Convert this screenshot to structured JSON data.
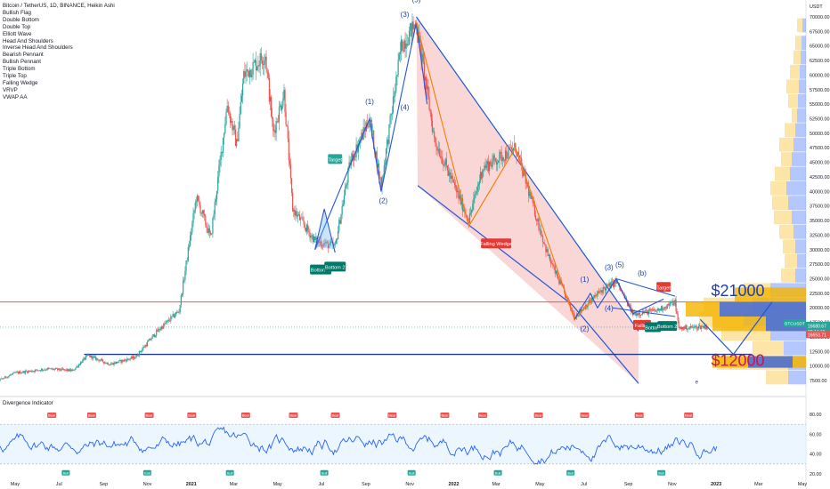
{
  "chart_data": [
    {
      "type": "candlestick",
      "title": "Bitcoin / TetherUS, 1D, BINANCE, Heikin Ashi",
      "currency": "USDT",
      "ylim": [
        5000,
        71500
      ],
      "y_ticks": [
        "70000.00",
        "67500.00",
        "65000.00",
        "62500.00",
        "60000.00",
        "57500.00",
        "55000.00",
        "52500.00",
        "50000.00",
        "47500.00",
        "45000.00",
        "42500.00",
        "40000.00",
        "37500.00",
        "35000.00",
        "32500.00",
        "30000.00",
        "27500.00",
        "25000.00",
        "22500.00",
        "20000.00",
        "17500.00",
        "15000.00",
        "12500.00",
        "10000.00",
        "7500.00"
      ],
      "x_ticks": [
        "May",
        "Jul",
        "Sep",
        "Nov",
        "2021",
        "Mar",
        "May",
        "Jul",
        "Sep",
        "Nov",
        "2022",
        "Mar",
        "May",
        "Jul",
        "Sep",
        "Nov",
        "2023",
        "Mar",
        "May"
      ],
      "price_path": [
        {
          "date": "2020-03-20",
          "close": 6500
        },
        {
          "date": "2020-05-01",
          "close": 8800
        },
        {
          "date": "2020-06-15",
          "close": 9500
        },
        {
          "date": "2020-07-20",
          "close": 9200
        },
        {
          "date": "2020-08-10",
          "close": 11800
        },
        {
          "date": "2020-09-10",
          "close": 10300
        },
        {
          "date": "2020-10-15",
          "close": 11500
        },
        {
          "date": "2020-11-15",
          "close": 16000
        },
        {
          "date": "2020-12-15",
          "close": 19500
        },
        {
          "date": "2021-01-08",
          "close": 39000
        },
        {
          "date": "2021-01-28",
          "close": 32000
        },
        {
          "date": "2021-02-20",
          "close": 55000
        },
        {
          "date": "2021-03-05",
          "close": 48000
        },
        {
          "date": "2021-03-15",
          "close": 60000
        },
        {
          "date": "2021-04-14",
          "close": 63500
        },
        {
          "date": "2021-04-25",
          "close": 50000
        },
        {
          "date": "2021-05-10",
          "close": 57000
        },
        {
          "date": "2021-05-22",
          "close": 37000
        },
        {
          "date": "2021-06-22",
          "close": 31500
        },
        {
          "date": "2021-07-20",
          "close": 30500
        },
        {
          "date": "2021-08-10",
          "close": 45000
        },
        {
          "date": "2021-09-06",
          "close": 52500
        },
        {
          "date": "2021-09-22",
          "close": 41000
        },
        {
          "date": "2021-10-20",
          "close": 65000
        },
        {
          "date": "2021-11-10",
          "close": 69000
        },
        {
          "date": "2021-12-05",
          "close": 49000
        },
        {
          "date": "2022-01-22",
          "close": 35000
        },
        {
          "date": "2022-02-10",
          "close": 44000
        },
        {
          "date": "2022-03-28",
          "close": 47500
        },
        {
          "date": "2022-05-12",
          "close": 29000
        },
        {
          "date": "2022-06-18",
          "close": 18500
        },
        {
          "date": "2022-07-25",
          "close": 23000
        },
        {
          "date": "2022-08-15",
          "close": 24500
        },
        {
          "date": "2022-09-07",
          "close": 19000
        },
        {
          "date": "2022-10-10",
          "close": 19500
        },
        {
          "date": "2022-11-05",
          "close": 21000
        },
        {
          "date": "2022-11-10",
          "close": 16500
        },
        {
          "date": "2022-12-20",
          "close": 16800
        }
      ],
      "legend": [
        "Bullish Flag",
        "Double Bottom",
        "Double Top",
        "Elliott Wave",
        "Head And Shoulders",
        "Inverse Head And Shoulders",
        "Bearish Pennant",
        "Bullish Pennant",
        "Triple Bottom",
        "Triple Top",
        "Falling Wedge",
        "VRVP",
        "VWAP AA"
      ],
      "labels": {
        "bottom1": "Bottom 1",
        "bottom2": "Bottom 2",
        "target1": "Target",
        "falling_wedge": "Falling Wedge",
        "target2": "Target",
        "falling2": "Falling",
        "bottom3": "Bottom",
        "bottom4": "Bottom 2",
        "wave1": "(1)",
        "wave2": "(2)",
        "wave3": "(3)",
        "wave4": "(4)",
        "wave5": "(5)",
        "wave1b": "(1)",
        "wave2b": "(2)",
        "wave3b": "(3)",
        "wave4b": "(4)",
        "wave5b": "(5)",
        "waveb": "(b)",
        "wavee": "e",
        "target21000": "$21000",
        "target12000": "$12000"
      },
      "price_tags": {
        "symbol": "BTCUSDT",
        "price": "16680.67",
        "countdown": "08:14:10",
        "vwap": "16653.71"
      },
      "levels": {
        "resistance": 21000,
        "support": 12000,
        "last_price": 16680
      }
    },
    {
      "type": "line",
      "title": "Divergence Indicator",
      "ylim": [
        15,
        105
      ],
      "y_ticks": [
        "80.00",
        "60.00",
        "40.00",
        "20.00"
      ],
      "band": [
        30,
        70
      ],
      "bear_label": "Bear",
      "bull_label": "Bull",
      "bear_count": 14,
      "bull_count": 8
    }
  ],
  "colors": {
    "up": "#26a69a",
    "down": "#ef5350",
    "wedge": "#f7c6c5",
    "band": "#e3f2fd",
    "line": "#2962ff",
    "pattern": "#2156d8",
    "orange": "#f57c00",
    "resistance": "#ef5350",
    "vp_blue": "#2962ff",
    "vp_orange": "#f5b400"
  }
}
